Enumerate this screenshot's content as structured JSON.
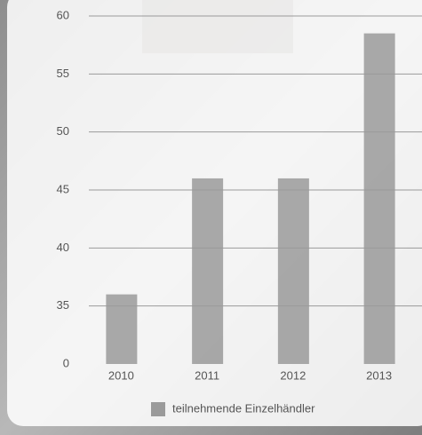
{
  "chart_data": {
    "type": "bar",
    "categories": [
      "2010",
      "2011",
      "2012",
      "2013"
    ],
    "series": [
      {
        "name": "teilnehmende Einzelhändler",
        "color": "#9a9a9a",
        "values": [
          36,
          46,
          46,
          58.5
        ]
      }
    ],
    "ylim": [
      0,
      60
    ],
    "yticks": [
      0,
      35,
      40,
      45,
      50,
      55,
      60
    ],
    "grid": true,
    "legend": "bottom"
  }
}
